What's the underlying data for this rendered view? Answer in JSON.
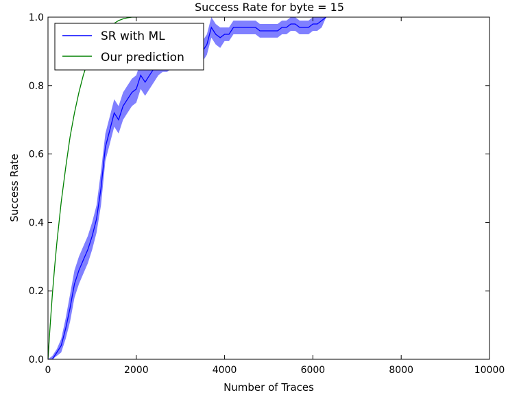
{
  "chart_data": {
    "type": "line",
    "title": "Success Rate for byte = 15",
    "xlabel": "Number of Traces",
    "ylabel": "Success Rate",
    "xlim": [
      0,
      10000
    ],
    "ylim": [
      0,
      1.0
    ],
    "xticks": [
      0,
      2000,
      4000,
      6000,
      8000,
      10000
    ],
    "yticks": [
      0.0,
      0.2,
      0.4,
      0.6,
      0.8,
      1.0
    ],
    "xtick_labels": [
      "0",
      "2000",
      "4000",
      "6000",
      "8000",
      "10000"
    ],
    "ytick_labels": [
      "0.0",
      "0.2",
      "0.4",
      "0.6",
      "0.8",
      "1.0"
    ],
    "grid": false,
    "legend_position": "top-left",
    "series": [
      {
        "name": "SR with ML",
        "color": "#0000ff",
        "band_color": "#5555ff",
        "x": [
          0,
          100,
          200,
          300,
          400,
          500,
          600,
          700,
          800,
          900,
          1000,
          1100,
          1200,
          1300,
          1400,
          1500,
          1600,
          1700,
          1800,
          1900,
          2000,
          2100,
          2200,
          2300,
          2400,
          2500,
          2600,
          2700,
          2800,
          2900,
          3000,
          3100,
          3200,
          3300,
          3400,
          3500,
          3600,
          3700,
          3800,
          3900,
          4000,
          4100,
          4200,
          4300,
          4400,
          4500,
          4600,
          4700,
          4800,
          4900,
          5000,
          5100,
          5200,
          5300,
          5400,
          5500,
          5600,
          5700,
          5800,
          5900,
          6000,
          6100,
          6200,
          6300
        ],
        "values": [
          0.0,
          0.0,
          0.02,
          0.04,
          0.09,
          0.15,
          0.22,
          0.26,
          0.29,
          0.32,
          0.36,
          0.41,
          0.5,
          0.62,
          0.67,
          0.72,
          0.7,
          0.74,
          0.76,
          0.78,
          0.79,
          0.83,
          0.81,
          0.83,
          0.85,
          0.86,
          0.87,
          0.87,
          0.88,
          0.88,
          0.89,
          0.89,
          0.89,
          0.9,
          0.9,
          0.9,
          0.92,
          0.97,
          0.95,
          0.94,
          0.95,
          0.95,
          0.97,
          0.97,
          0.97,
          0.97,
          0.97,
          0.97,
          0.96,
          0.96,
          0.96,
          0.96,
          0.96,
          0.97,
          0.97,
          0.98,
          0.98,
          0.97,
          0.97,
          0.97,
          0.98,
          0.98,
          0.99,
          1.0
        ],
        "lower": [
          0.0,
          0.0,
          0.01,
          0.02,
          0.06,
          0.11,
          0.18,
          0.22,
          0.25,
          0.28,
          0.32,
          0.37,
          0.45,
          0.58,
          0.63,
          0.68,
          0.66,
          0.7,
          0.72,
          0.74,
          0.75,
          0.79,
          0.77,
          0.79,
          0.81,
          0.83,
          0.84,
          0.84,
          0.85,
          0.85,
          0.86,
          0.86,
          0.86,
          0.87,
          0.87,
          0.87,
          0.89,
          0.94,
          0.92,
          0.91,
          0.93,
          0.93,
          0.95,
          0.95,
          0.95,
          0.95,
          0.95,
          0.95,
          0.94,
          0.94,
          0.94,
          0.94,
          0.94,
          0.95,
          0.95,
          0.96,
          0.96,
          0.95,
          0.95,
          0.95,
          0.96,
          0.96,
          0.97,
          1.0
        ],
        "upper": [
          0.0,
          0.01,
          0.03,
          0.06,
          0.12,
          0.19,
          0.26,
          0.3,
          0.33,
          0.36,
          0.4,
          0.45,
          0.55,
          0.66,
          0.71,
          0.76,
          0.74,
          0.78,
          0.8,
          0.82,
          0.83,
          0.87,
          0.85,
          0.87,
          0.89,
          0.89,
          0.9,
          0.9,
          0.91,
          0.91,
          0.92,
          0.92,
          0.92,
          0.93,
          0.93,
          0.93,
          0.95,
          1.0,
          0.98,
          0.97,
          0.97,
          0.97,
          0.99,
          0.99,
          0.99,
          0.99,
          0.99,
          0.99,
          0.98,
          0.98,
          0.98,
          0.98,
          0.98,
          0.99,
          0.99,
          1.0,
          1.0,
          0.99,
          0.99,
          0.99,
          1.0,
          1.0,
          1.0,
          1.0
        ]
      },
      {
        "name": "Our prediction",
        "color": "#008000",
        "x": [
          0,
          50,
          100,
          150,
          200,
          300,
          400,
          500,
          600,
          700,
          800,
          900,
          1000,
          1100,
          1200,
          1300,
          1400,
          1500,
          1600,
          1700,
          1800,
          1900,
          2000
        ],
        "values": [
          0.0,
          0.1,
          0.19,
          0.27,
          0.34,
          0.46,
          0.56,
          0.65,
          0.72,
          0.78,
          0.83,
          0.87,
          0.9,
          0.925,
          0.945,
          0.96,
          0.972,
          0.982,
          0.99,
          0.995,
          0.998,
          1.0,
          1.0
        ]
      }
    ]
  }
}
